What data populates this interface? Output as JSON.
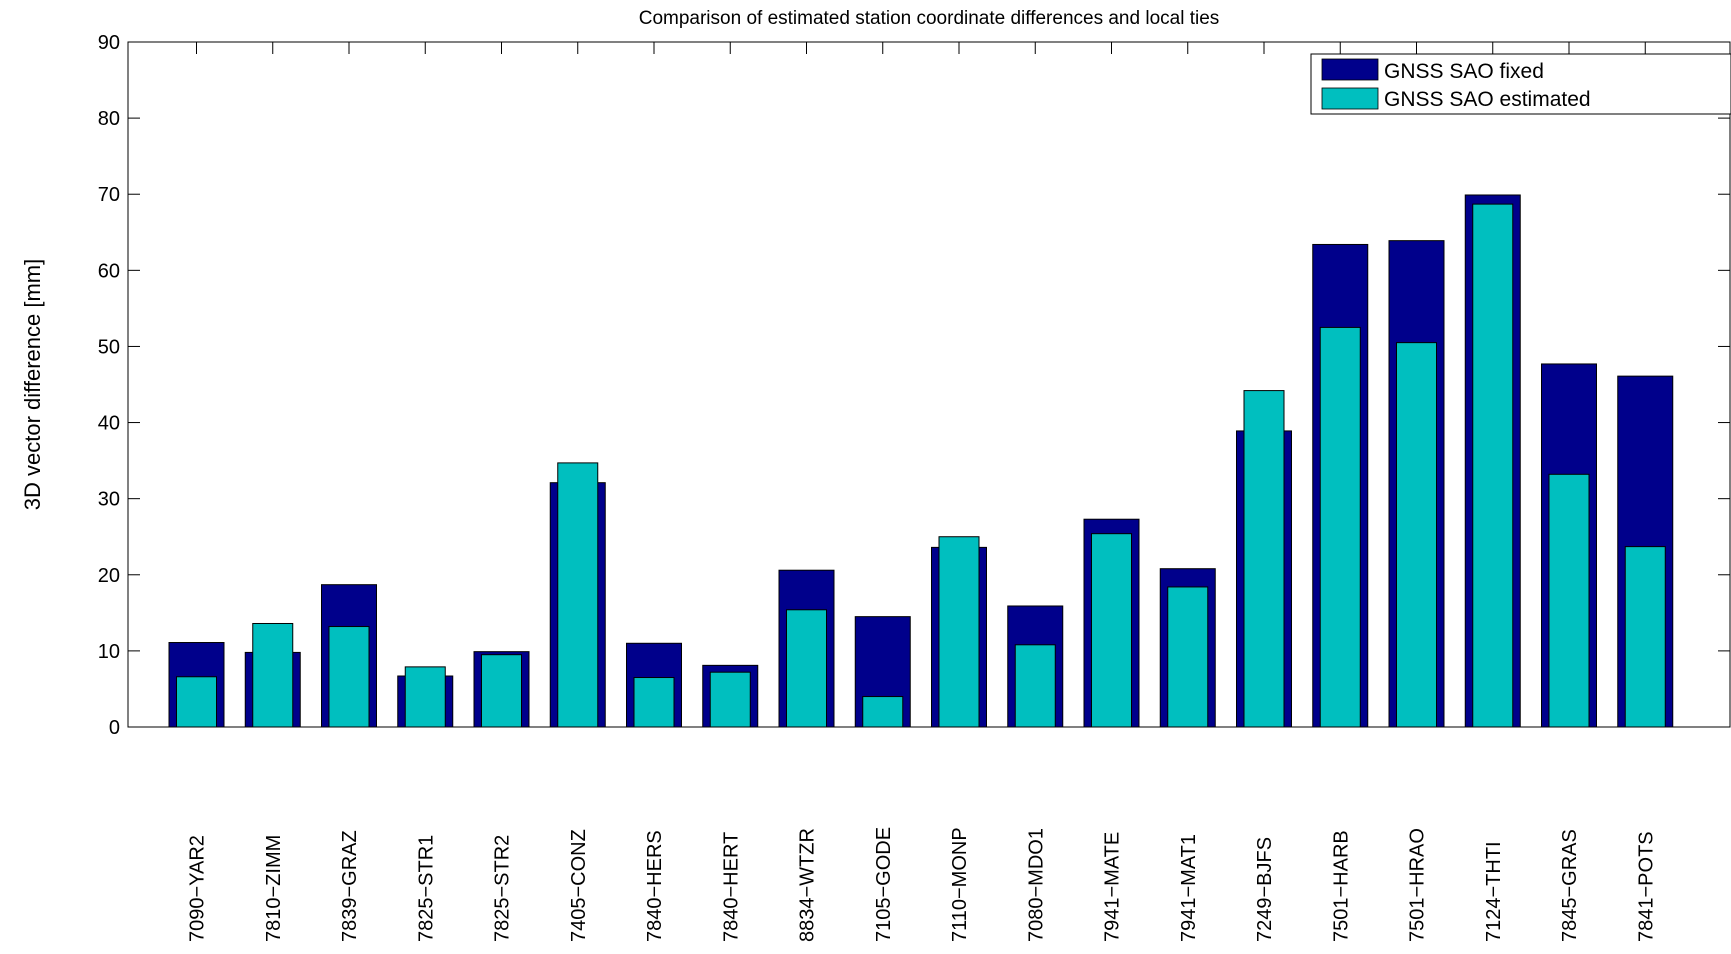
{
  "chart_data": {
    "type": "bar",
    "title": "Comparison of estimated station coordinate differences and local ties",
    "xlabel": "",
    "ylabel": "3D vector difference [mm]",
    "ylim": [
      0,
      90
    ],
    "yticks": [
      0,
      10,
      20,
      30,
      40,
      50,
      60,
      70,
      80,
      90
    ],
    "grid": false,
    "legend_position": "top-right",
    "categories": [
      "7090−YAR2",
      "7810−ZIMM",
      "7839−GRAZ",
      "7825−STR1",
      "7825−STR2",
      "7405−CONZ",
      "7840−HERS",
      "7840−HERT",
      "8834−WTZR",
      "7105−GODE",
      "7110−MONP",
      "7080−MDO1",
      "7941−MATE",
      "7941−MAT1",
      "7249−BJFS",
      "7501−HARB",
      "7501−HRAO",
      "7124−THTI",
      "7845−GRAS",
      "7841−POTS"
    ],
    "series": [
      {
        "name": "GNSS SAO fixed",
        "color": "#00008b",
        "values": [
          11.1,
          9.8,
          18.7,
          6.7,
          9.9,
          32.1,
          11.0,
          8.1,
          20.6,
          14.5,
          23.6,
          15.9,
          27.3,
          20.8,
          38.9,
          63.4,
          63.9,
          69.9,
          47.7,
          46.1
        ]
      },
      {
        "name": "GNSS SAO estimated",
        "color": "#00bfbf",
        "values": [
          6.6,
          13.6,
          13.2,
          7.9,
          9.5,
          34.7,
          6.5,
          7.2,
          15.4,
          4.0,
          25.0,
          10.8,
          25.4,
          18.4,
          44.2,
          52.5,
          50.5,
          68.7,
          33.2,
          23.7
        ]
      }
    ]
  }
}
